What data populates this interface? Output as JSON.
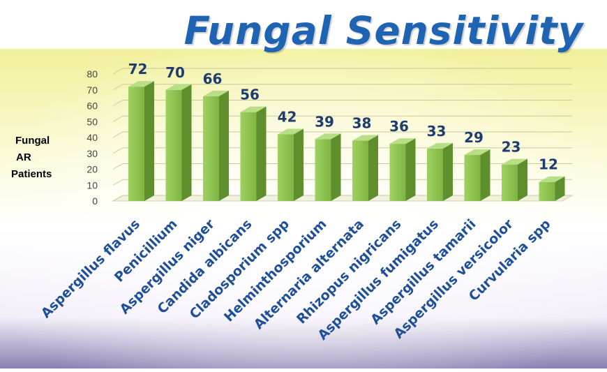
{
  "title": "Fungal Sensitivity",
  "ylabel_lines": [
    "Fungal",
    "AR",
    "Patients"
  ],
  "colors": {
    "title": "#1f63b3",
    "bar_front": "#8dc153",
    "bar_side": "#5f8f2c",
    "bar_top": "#b9df86",
    "value_label": "#1f3b70",
    "category_label": "#1f4f98"
  },
  "chart_data": {
    "type": "bar",
    "title": "Fungal Sensitivity",
    "ylabel": "Fungal AR Patients",
    "xlabel": "",
    "ylim": [
      0,
      80
    ],
    "yticks": [
      0,
      10,
      20,
      30,
      40,
      50,
      60,
      70,
      80
    ],
    "grid": true,
    "categories": [
      "Aspergillus flavus",
      "Penicillium",
      "Aspergillus niger",
      "Candida albicans",
      "Cladosporium spp",
      "Helminthosporium",
      "Alternaria alternata",
      "Rhizopus nigricans",
      "Aspergillus fumigatus",
      "Aspergillus tamarii",
      "Aspergillus versicolor",
      "Curvularia spp"
    ],
    "values": [
      72,
      70,
      66,
      56,
      42,
      39,
      38,
      36,
      33,
      29,
      23,
      12
    ]
  }
}
